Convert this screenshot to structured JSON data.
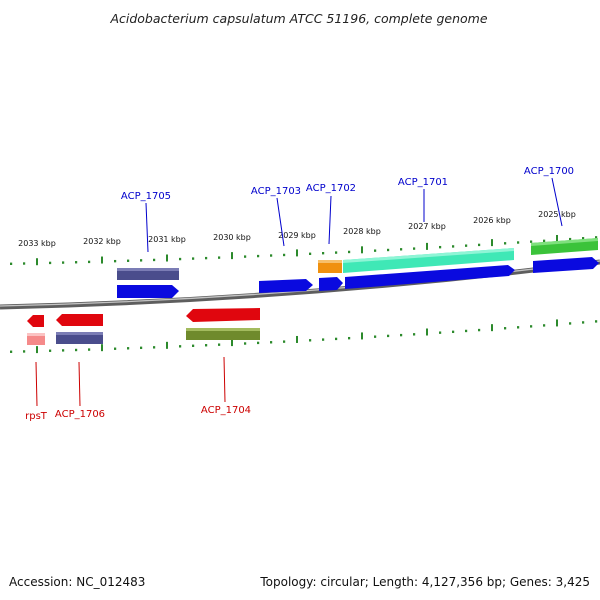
{
  "title": "Acidobacterium capsulatum ATCC 51196, complete genome",
  "footer": {
    "accession": "Accession: NC_012483",
    "topology": "Topology: circular; Length: 4,127,356 bp; Genes: 3,425"
  },
  "ruler_labels": [
    "2033 kbp",
    "2032 kbp",
    "2031 kbp",
    "2030 kbp",
    "2029 kbp",
    "2028 kbp",
    "2027 kbp",
    "2026 kbp",
    "2025 kbp"
  ],
  "genes_forward": [
    {
      "name": "ACP_1705",
      "color": "#0000cc"
    },
    {
      "name": "ACP_1703",
      "color": "#0000cc"
    },
    {
      "name": "ACP_1702",
      "color": "#0000cc"
    },
    {
      "name": "ACP_1701",
      "color": "#0000cc"
    },
    {
      "name": "ACP_1700",
      "color": "#0000cc"
    }
  ],
  "genes_reverse": [
    {
      "name": "rpsT",
      "color": "#cc0000"
    },
    {
      "name": "ACP_1706",
      "color": "#cc0000"
    },
    {
      "name": "ACP_1704",
      "color": "#cc0000"
    }
  ],
  "colors": {
    "gene_forward": "#0a0adf",
    "gene_reverse": "#e0060e",
    "cds_purple": "#4a4d8c",
    "cds_olive": "#6f8a2c",
    "cds_orange": "#f0900e",
    "cds_teal": "#3fe8b6",
    "cds_green": "#3bc33a",
    "cds_pink": "#f58a8a",
    "ticks": "#2c8a2c",
    "backbone": "#8a8a8a"
  }
}
